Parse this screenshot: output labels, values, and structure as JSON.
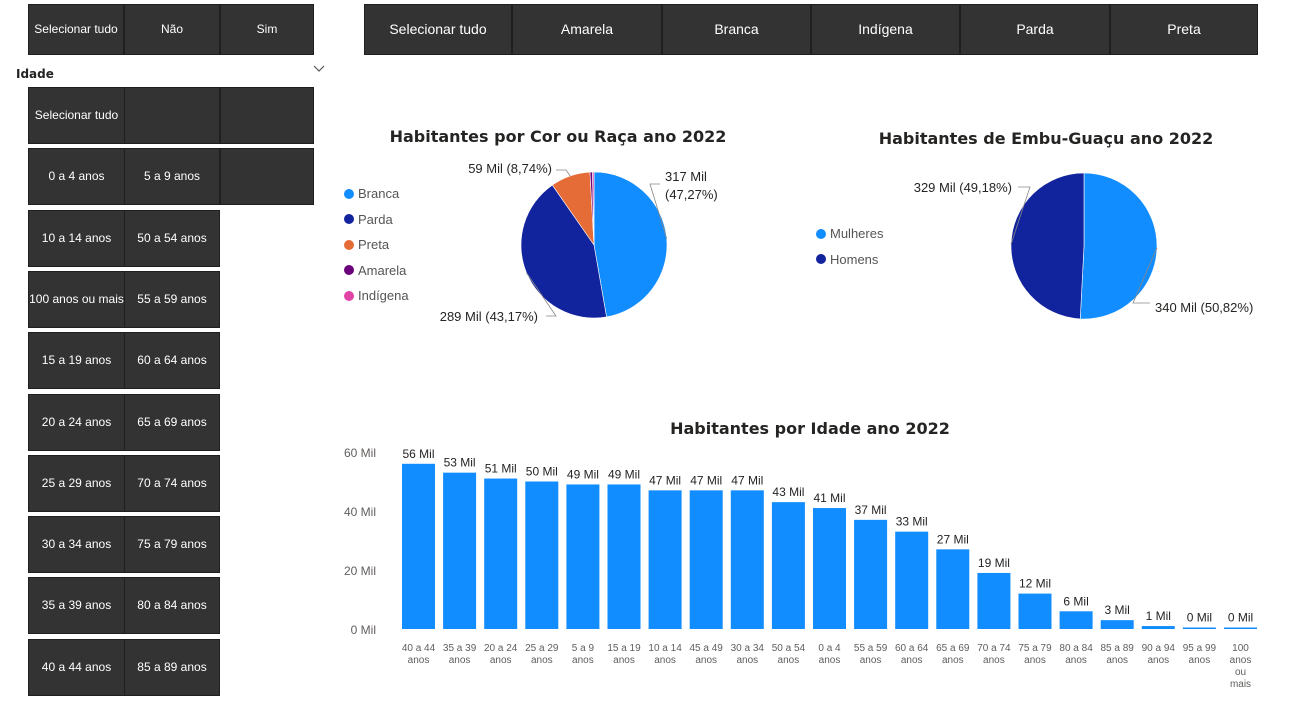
{
  "filter_sim_nao": {
    "items": [
      "Selecionar tudo",
      "Não",
      "Sim"
    ]
  },
  "filter_cor": {
    "items": [
      "Selecionar tudo",
      "Amarela",
      "Branca",
      "Indígena",
      "Parda",
      "Preta"
    ]
  },
  "idade_slicer": {
    "label": "Idade",
    "items": [
      "Selecionar tudo",
      "",
      "",
      "0 a 4 anos",
      "5 a 9 anos",
      "",
      "10 a 14 anos",
      "50 a 54 anos",
      "100 anos ou mais",
      "55 a 59 anos",
      "15 a 19 anos",
      "60 a 64 anos",
      "20 a 24 anos",
      "65 a 69 anos",
      "25 a 29 anos",
      "70 a 74 anos",
      "30 a 34 anos",
      "75 a 79 anos",
      "35 a 39 anos",
      "80 a 84 anos",
      "40 a 44 anos",
      "85 a 89 anos"
    ]
  },
  "chart_data": [
    {
      "type": "pie",
      "title": "Habitantes por Cor ou Raça ano 2022",
      "legend_position": "left",
      "slices": [
        {
          "name": "Branca",
          "value": 317,
          "label": "317 Mil (47,27%)",
          "color": "#118DFF"
        },
        {
          "name": "Parda",
          "value": 289,
          "label": "289 Mil (43,17%)",
          "color": "#12239E"
        },
        {
          "name": "Preta",
          "value": 59,
          "label": "59 Mil (8,74%)",
          "color": "#E66C37"
        },
        {
          "name": "Amarela",
          "value": 3.6,
          "label": "",
          "color": "#6B007B"
        },
        {
          "name": "Indígena",
          "value": 2.3,
          "label": "",
          "color": "#E044A7"
        }
      ]
    },
    {
      "type": "pie",
      "title": "Habitantes de Embu-Guaçu ano 2022",
      "legend_position": "left",
      "slices": [
        {
          "name": "Mulheres",
          "value": 340,
          "label": "340 Mil (50,82%)",
          "color": "#118DFF"
        },
        {
          "name": "Homens",
          "value": 329,
          "label": "329 Mil (49,18%)",
          "color": "#12239E"
        }
      ]
    },
    {
      "type": "bar",
      "title": "Habitantes por Idade ano 2022",
      "bar_color": "#118DFF",
      "categories": [
        "40 a 44 anos",
        "35 a 39 anos",
        "20 a 24 anos",
        "25 a 29 anos",
        "5 a 9 anos",
        "15 a 19 anos",
        "10 a 14 anos",
        "45 a 49 anos",
        "30 a 34 anos",
        "50 a 54 anos",
        "0 a 4 anos",
        "55 a 59 anos",
        "60 a 64 anos",
        "65 a 69 anos",
        "70 a 74 anos",
        "75 a 79 anos",
        "80 a 84 anos",
        "85 a 89 anos",
        "90 a 94 anos",
        "95 a 99 anos",
        "100 anos ou mais"
      ],
      "values": [
        56,
        53,
        51,
        50,
        49,
        49,
        47,
        47,
        47,
        43,
        41,
        37,
        33,
        27,
        19,
        12,
        6,
        3,
        1,
        0.5,
        0.3
      ],
      "value_labels": [
        "56 Mil",
        "53 Mil",
        "51 Mil",
        "50 Mil",
        "49 Mil",
        "49 Mil",
        "47 Mil",
        "47 Mil",
        "47 Mil",
        "43 Mil",
        "41 Mil",
        "37 Mil",
        "33 Mil",
        "27 Mil",
        "19 Mil",
        "12 Mil",
        "6 Mil",
        "3 Mil",
        "1 Mil",
        "0 Mil",
        "0 Mil"
      ],
      "ylim": [
        0,
        60
      ],
      "yticks": [
        0,
        20,
        40,
        60
      ],
      "ytick_labels": [
        "0 Mil",
        "20 Mil",
        "40 Mil",
        "60 Mil"
      ],
      "grid": false
    }
  ]
}
